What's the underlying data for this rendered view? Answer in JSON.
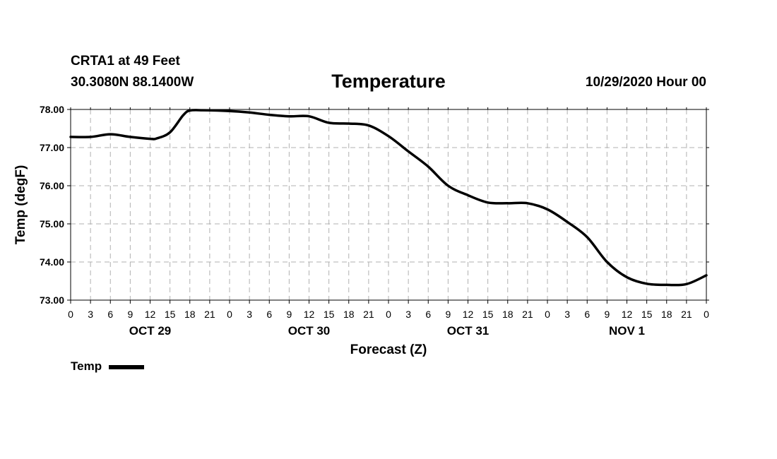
{
  "header": {
    "station": "CRTA1 at 49 Feet",
    "coords": "30.3080N 88.1400W",
    "title": "Temperature",
    "run_time": "10/29/2020 Hour 00"
  },
  "legend": {
    "label": "Temp"
  },
  "colors": {
    "line": "#000000",
    "grid": "#b0b0b0"
  },
  "chart_data": {
    "type": "line",
    "title": "Temperature",
    "xlabel": "Forecast (Z)",
    "ylabel": "Temp (degF)",
    "ylim": [
      73,
      78
    ],
    "xlim": [
      0,
      96
    ],
    "grid": true,
    "legend_position": "bottom-left",
    "y_ticks": [
      "73.00",
      "74.00",
      "75.00",
      "76.00",
      "77.00",
      "78.00"
    ],
    "x_ticks": [
      {
        "x": 0,
        "label": "0"
      },
      {
        "x": 3,
        "label": "3"
      },
      {
        "x": 6,
        "label": "6"
      },
      {
        "x": 9,
        "label": "9"
      },
      {
        "x": 12,
        "label": "12"
      },
      {
        "x": 15,
        "label": "15"
      },
      {
        "x": 18,
        "label": "18"
      },
      {
        "x": 21,
        "label": "21"
      },
      {
        "x": 24,
        "label": "0"
      },
      {
        "x": 27,
        "label": "3"
      },
      {
        "x": 30,
        "label": "6"
      },
      {
        "x": 33,
        "label": "9"
      },
      {
        "x": 36,
        "label": "12"
      },
      {
        "x": 39,
        "label": "15"
      },
      {
        "x": 42,
        "label": "18"
      },
      {
        "x": 45,
        "label": "21"
      },
      {
        "x": 48,
        "label": "0"
      },
      {
        "x": 51,
        "label": "3"
      },
      {
        "x": 54,
        "label": "6"
      },
      {
        "x": 57,
        "label": "9"
      },
      {
        "x": 60,
        "label": "12"
      },
      {
        "x": 63,
        "label": "15"
      },
      {
        "x": 66,
        "label": "18"
      },
      {
        "x": 69,
        "label": "21"
      },
      {
        "x": 72,
        "label": "0"
      },
      {
        "x": 75,
        "label": "3"
      },
      {
        "x": 78,
        "label": "6"
      },
      {
        "x": 81,
        "label": "9"
      },
      {
        "x": 84,
        "label": "12"
      },
      {
        "x": 87,
        "label": "15"
      },
      {
        "x": 90,
        "label": "18"
      },
      {
        "x": 93,
        "label": "21"
      },
      {
        "x": 96,
        "label": "0"
      }
    ],
    "day_labels": [
      {
        "x": 12,
        "label": "OCT 29"
      },
      {
        "x": 36,
        "label": "OCT 30"
      },
      {
        "x": 60,
        "label": "OCT 31"
      },
      {
        "x": 84,
        "label": "NOV 1"
      }
    ],
    "series": [
      {
        "name": "Temp",
        "x": [
          0,
          3,
          6,
          9,
          12,
          13,
          15,
          17,
          18,
          20,
          24,
          27,
          30,
          33,
          36,
          39,
          42,
          45,
          48,
          51,
          54,
          57,
          60,
          63,
          66,
          69,
          72,
          75,
          78,
          81,
          84,
          87,
          90,
          93,
          96
        ],
        "y": [
          77.28,
          77.28,
          77.35,
          77.28,
          77.23,
          77.24,
          77.4,
          77.85,
          77.97,
          77.98,
          77.96,
          77.92,
          77.86,
          77.82,
          77.82,
          77.65,
          77.63,
          77.58,
          77.3,
          76.9,
          76.5,
          76.0,
          75.75,
          75.56,
          75.54,
          75.54,
          75.38,
          75.05,
          74.65,
          74.0,
          73.6,
          73.43,
          73.4,
          73.42,
          73.65
        ]
      }
    ]
  }
}
